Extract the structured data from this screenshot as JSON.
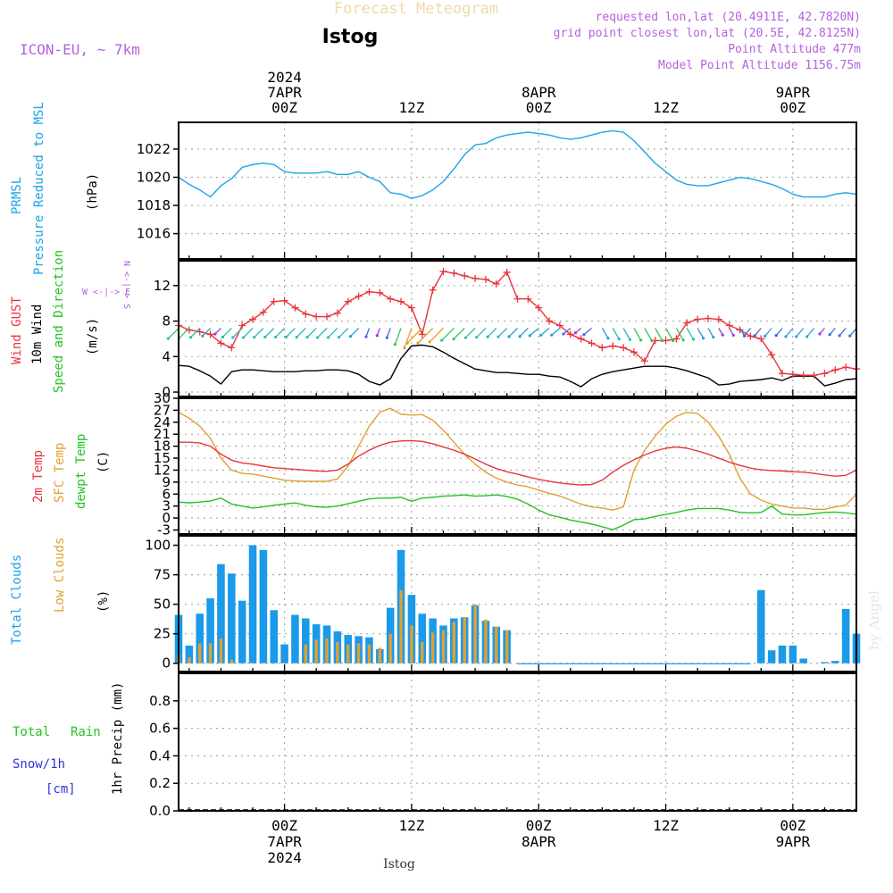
{
  "header": {
    "title": "Forecast Meteogram",
    "station": "Istog",
    "model": "ICON-EU, ~ 7km",
    "requested": "requested lon,lat (20.4911E, 42.7820N)",
    "grid": "grid point closest lon,lat (20.5E, 42.8125N)",
    "point_alt": "Point Altitude 477m",
    "model_alt": "Model Point Altitude 1156.75m",
    "footer_station": "Istog",
    "watermark": "by Angel"
  },
  "time_axis": {
    "start_hour": -10,
    "end_hour": 54,
    "top": [
      {
        "hour": 0,
        "lines": [
          "2024",
          "7APR",
          "00Z"
        ]
      },
      {
        "hour": 12,
        "lines": [
          "12Z"
        ]
      },
      {
        "hour": 24,
        "lines": [
          "8APR",
          "00Z"
        ]
      },
      {
        "hour": 36,
        "lines": [
          "12Z"
        ]
      },
      {
        "hour": 48,
        "lines": [
          "9APR",
          "00Z"
        ]
      },
      {
        "hour": 60,
        "lines": [
          "12Z"
        ]
      }
    ],
    "bottom": [
      {
        "hour": 0,
        "lines": [
          "00Z",
          "7APR",
          "2024"
        ]
      },
      {
        "hour": 12,
        "lines": [
          "12Z"
        ]
      },
      {
        "hour": 24,
        "lines": [
          "00Z",
          "8APR"
        ]
      },
      {
        "hour": 36,
        "lines": [
          "12Z"
        ]
      },
      {
        "hour": 48,
        "lines": [
          "00Z",
          "9APR"
        ]
      },
      {
        "hour": 60,
        "lines": [
          "12Z"
        ]
      }
    ]
  },
  "panel_labels": {
    "pressure": {
      "l1": "PRMSL",
      "l2": "Pressure Reduced to MSL",
      "unit": "(hPa)"
    },
    "wind": {
      "l1": "Wind GUST",
      "l2": "10m Wind",
      "l3": "Speed and Direction",
      "unit": "(m/s)",
      "compass_ns": "N <-|-> S",
      "compass_we": "W <-|-> E"
    },
    "temp": {
      "l1": "2m Temp",
      "l2": "SFC Temp",
      "l3": "dewpt Temp",
      "unit": "(C)"
    },
    "clouds": {
      "l1": "Total Clouds",
      "l2": "Low Clouds",
      "unit": "(%)"
    },
    "precip": {
      "l1": "Total",
      "l1b": "Rain",
      "l2": "Snow/1h",
      "l3": "[cm]",
      "unit": "1hr Precip (mm)"
    }
  },
  "colors": {
    "pressure": "#1ba4e8",
    "gust": "#e8343c",
    "wind": "#000000",
    "t2m": "#e8343c",
    "sfc": "#e0a030",
    "dewpt": "#22c322",
    "total_clouds": "#1a9ae8",
    "low_clouds": "#e0a030",
    "rain": "#22c322",
    "snow": "#3030e0",
    "purple": "#b561e0",
    "grid": "#aaaaaa"
  },
  "chart_data": [
    {
      "type": "line",
      "panel": "pressure",
      "ylabel": "(hPa)",
      "ylim": [
        1014.2,
        1023.9
      ],
      "yticks": [
        1016,
        1018,
        1020,
        1022
      ],
      "x": [
        -10,
        -9,
        -8,
        -7,
        -6,
        -5,
        -4,
        -3,
        -2,
        -1,
        0,
        1,
        2,
        3,
        4,
        5,
        6,
        7,
        8,
        9,
        10,
        11,
        12,
        13,
        14,
        15,
        16,
        17,
        18,
        19,
        20,
        21,
        22,
        23,
        24,
        25,
        26,
        27,
        28,
        29,
        30,
        31,
        32,
        33,
        34,
        35,
        36,
        37,
        38,
        39,
        40,
        41,
        42,
        43,
        44,
        45,
        46,
        47,
        48,
        49,
        50,
        51,
        52,
        53,
        54
      ],
      "series": [
        {
          "name": "PRMSL",
          "values": [
            1020.0,
            1019.5,
            1019.1,
            1018.6,
            1019.4,
            1019.9,
            1020.7,
            1020.9,
            1021.0,
            1020.9,
            1020.4,
            1020.3,
            1020.3,
            1020.3,
            1020.4,
            1020.2,
            1020.2,
            1020.4,
            1020.0,
            1019.7,
            1018.9,
            1018.8,
            1018.5,
            1018.7,
            1019.1,
            1019.7,
            1020.6,
            1021.6,
            1022.3,
            1022.4,
            1022.8,
            1023.0,
            1023.1,
            1023.2,
            1023.1,
            1023.0,
            1022.8,
            1022.7,
            1022.8,
            1023.0,
            1023.2,
            1023.3,
            1023.2,
            1022.6,
            1021.8,
            1021.0,
            1020.4,
            1019.8,
            1019.5,
            1019.4,
            1019.4,
            1019.6,
            1019.8,
            1020.0,
            1019.9,
            1019.7,
            1019.5,
            1019.2,
            1018.8,
            1018.6,
            1018.6,
            1018.6,
            1018.8,
            1018.9,
            1018.8
          ]
        }
      ]
    },
    {
      "type": "line",
      "panel": "wind",
      "ylabel": "(m/s)",
      "ylim": [
        -0.5,
        14.8
      ],
      "yticks": [
        0,
        4,
        8,
        12
      ],
      "x": [
        -10,
        -9,
        -8,
        -7,
        -6,
        -5,
        -4,
        -3,
        -2,
        -1,
        0,
        1,
        2,
        3,
        4,
        5,
        6,
        7,
        8,
        9,
        10,
        11,
        12,
        13,
        14,
        15,
        16,
        17,
        18,
        19,
        20,
        21,
        22,
        23,
        24,
        25,
        26,
        27,
        28,
        29,
        30,
        31,
        32,
        33,
        34,
        35,
        36,
        37,
        38,
        39,
        40,
        41,
        42,
        43,
        44,
        45,
        46,
        47,
        48,
        49,
        50,
        51,
        52,
        53,
        54
      ],
      "series": [
        {
          "name": "Wind GUST",
          "values": [
            7.5,
            7.0,
            6.8,
            6.5,
            5.5,
            5.0,
            7.5,
            8.2,
            9.0,
            10.2,
            10.3,
            9.5,
            8.8,
            8.5,
            8.5,
            8.9,
            10.2,
            10.8,
            11.3,
            11.2,
            10.5,
            10.2,
            9.5,
            6.5,
            11.5,
            13.6,
            13.4,
            13.1,
            12.8,
            12.7,
            12.2,
            13.5,
            10.5,
            10.5,
            9.5,
            8.0,
            7.5,
            6.5,
            6.0,
            5.5,
            5.0,
            5.2,
            5.0,
            4.5,
            3.5,
            5.8,
            5.8,
            6.0,
            7.8,
            8.2,
            8.3,
            8.2,
            7.5,
            7.0,
            6.3,
            6.0,
            4.2,
            2.1,
            2.0,
            1.9,
            1.9,
            2.1,
            2.5,
            2.8,
            2.6
          ]
        },
        {
          "name": "10m Wind",
          "values": [
            3.0,
            2.9,
            2.4,
            1.8,
            0.9,
            2.3,
            2.5,
            2.5,
            2.4,
            2.3,
            2.3,
            2.3,
            2.4,
            2.4,
            2.5,
            2.5,
            2.4,
            2.0,
            1.2,
            0.8,
            1.5,
            3.8,
            5.2,
            5.3,
            5.1,
            4.5,
            3.8,
            3.2,
            2.6,
            2.4,
            2.2,
            2.2,
            2.1,
            2.0,
            2.0,
            1.8,
            1.7,
            1.2,
            0.6,
            1.5,
            2.0,
            2.3,
            2.5,
            2.7,
            2.9,
            2.9,
            2.9,
            2.7,
            2.4,
            2.0,
            1.6,
            0.8,
            0.9,
            1.2,
            1.3,
            1.4,
            1.6,
            1.3,
            1.8,
            1.8,
            1.8,
            0.7,
            1.0,
            1.4,
            1.5
          ]
        }
      ],
      "wind_barbs_count": 70
    },
    {
      "type": "line",
      "panel": "temp",
      "ylabel": "(C)",
      "ylim": [
        -4,
        30
      ],
      "yticks": [
        -3,
        0,
        3,
        6,
        9,
        12,
        15,
        18,
        21,
        24,
        27,
        30
      ],
      "x": [
        -10,
        -9,
        -8,
        -7,
        -6,
        -5,
        -4,
        -3,
        -2,
        -1,
        0,
        1,
        2,
        3,
        4,
        5,
        6,
        7,
        8,
        9,
        10,
        11,
        12,
        13,
        14,
        15,
        16,
        17,
        18,
        19,
        20,
        21,
        22,
        23,
        24,
        25,
        26,
        27,
        28,
        29,
        30,
        31,
        32,
        33,
        34,
        35,
        36,
        37,
        38,
        39,
        40,
        41,
        42,
        43,
        44,
        45,
        46,
        47,
        48,
        49,
        50,
        51,
        52,
        53,
        54
      ],
      "series": [
        {
          "name": "2m Temp",
          "values": [
            19.0,
            19.0,
            18.8,
            18.0,
            16.0,
            14.5,
            13.8,
            13.5,
            13.0,
            12.6,
            12.4,
            12.2,
            12.0,
            11.8,
            11.7,
            12.0,
            13.5,
            15.5,
            17.0,
            18.2,
            19.0,
            19.3,
            19.4,
            19.2,
            18.6,
            17.8,
            17.0,
            16.0,
            14.8,
            13.5,
            12.4,
            11.6,
            11.0,
            10.3,
            9.7,
            9.2,
            8.8,
            8.5,
            8.3,
            8.4,
            9.5,
            11.5,
            13.2,
            14.6,
            15.8,
            16.8,
            17.5,
            17.8,
            17.5,
            16.8,
            16.0,
            15.0,
            14.0,
            13.2,
            12.5,
            12.1,
            11.9,
            11.8,
            11.6,
            11.5,
            11.2,
            10.8,
            10.5,
            10.7,
            12.0
          ]
        },
        {
          "name": "SFC Temp",
          "values": [
            26.5,
            25.0,
            23.0,
            20.0,
            15.0,
            12.0,
            11.2,
            11.0,
            10.5,
            10.0,
            9.5,
            9.3,
            9.2,
            9.2,
            9.2,
            9.8,
            13.0,
            18.0,
            23.0,
            26.5,
            27.5,
            26.0,
            25.8,
            25.9,
            24.5,
            22.0,
            19.0,
            16.0,
            13.5,
            11.5,
            10.0,
            9.0,
            8.3,
            7.8,
            7.0,
            6.2,
            5.5,
            4.5,
            3.5,
            2.8,
            2.5,
            2.0,
            2.8,
            12.0,
            17.0,
            20.5,
            23.5,
            25.5,
            26.5,
            26.2,
            24.0,
            20.5,
            16.0,
            10.0,
            6.0,
            4.5,
            3.5,
            3.0,
            2.5,
            2.5,
            2.2,
            2.2,
            2.8,
            3.2,
            6.0
          ]
        },
        {
          "name": "dewpt Temp",
          "values": [
            4.0,
            3.8,
            4.0,
            4.3,
            5.0,
            3.5,
            3.0,
            2.5,
            2.8,
            3.2,
            3.5,
            3.8,
            3.2,
            2.8,
            2.7,
            3.0,
            3.6,
            4.2,
            4.8,
            5.0,
            5.0,
            5.2,
            4.2,
            5.0,
            5.2,
            5.5,
            5.6,
            5.8,
            5.5,
            5.6,
            5.8,
            5.4,
            4.7,
            3.5,
            2.0,
            0.8,
            0.2,
            -0.5,
            -1.0,
            -1.5,
            -2.2,
            -2.9,
            -1.8,
            -0.4,
            -0.2,
            0.4,
            0.9,
            1.4,
            2.0,
            2.4,
            2.4,
            2.4,
            2.0,
            1.4,
            1.3,
            1.4,
            3.0,
            1.0,
            0.8,
            0.8,
            1.1,
            1.4,
            1.5,
            1.3,
            1.0
          ]
        }
      ]
    },
    {
      "type": "bar",
      "panel": "clouds",
      "ylabel": "(%)",
      "ylim": [
        -7,
        108
      ],
      "yticks": [
        0,
        25,
        50,
        75,
        100
      ],
      "x": [
        -10,
        -9,
        -8,
        -7,
        -6,
        -5,
        -4,
        -3,
        -2,
        -1,
        0,
        1,
        2,
        3,
        4,
        5,
        6,
        7,
        8,
        9,
        10,
        11,
        12,
        13,
        14,
        15,
        16,
        17,
        18,
        19,
        20,
        21,
        22,
        23,
        24,
        25,
        26,
        27,
        28,
        29,
        30,
        31,
        32,
        33,
        34,
        35,
        36,
        37,
        38,
        39,
        40,
        41,
        42,
        43,
        44,
        45,
        46,
        47,
        48,
        49,
        50,
        51,
        52,
        53,
        54
      ],
      "series": [
        {
          "name": "Total Clouds",
          "values": [
            41,
            15,
            42,
            55,
            84,
            76,
            53,
            100,
            96,
            45,
            16,
            41,
            38,
            33,
            32,
            27,
            24,
            23,
            22,
            12,
            47,
            96,
            58,
            42,
            38,
            32,
            38,
            39,
            49,
            36,
            31,
            28,
            0,
            0,
            0,
            0,
            0,
            0,
            0,
            0,
            0,
            0,
            0,
            0,
            0,
            0,
            0,
            0,
            0,
            0,
            0,
            0,
            0,
            0,
            0,
            0,
            2,
            0,
            12,
            50,
            100,
            100,
            100,
            84,
            62
          ]
        },
        {
          "name": "Low Clouds",
          "values": [
            7,
            5,
            17,
            17,
            21,
            3,
            0,
            0,
            0,
            0,
            0,
            0,
            16,
            20,
            21,
            18,
            16,
            17,
            16,
            13,
            25,
            62,
            32,
            18,
            26,
            28,
            35,
            39,
            50,
            37,
            31,
            28,
            0,
            0,
            0,
            0,
            0,
            0,
            0,
            0,
            0,
            0,
            0,
            0,
            0,
            0,
            0,
            0,
            0,
            0,
            0,
            0,
            0,
            0,
            0,
            0,
            0,
            0,
            0,
            0,
            0,
            0,
            0,
            0,
            0
          ]
        }
      ],
      "extra_total_tail": [
        11,
        15,
        15,
        4,
        0,
        1,
        1,
        2,
        3,
        46,
        25,
        8
      ]
    },
    {
      "type": "bar",
      "panel": "precip",
      "ylabel": "1hr Precip (mm)",
      "ylim": [
        0,
        1.0
      ],
      "yticks": [
        0,
        0.2,
        0.4,
        0.6,
        0.8
      ],
      "series": [
        {
          "name": "Total Rain",
          "values": []
        },
        {
          "name": "Snow/1h",
          "values": []
        }
      ]
    }
  ]
}
